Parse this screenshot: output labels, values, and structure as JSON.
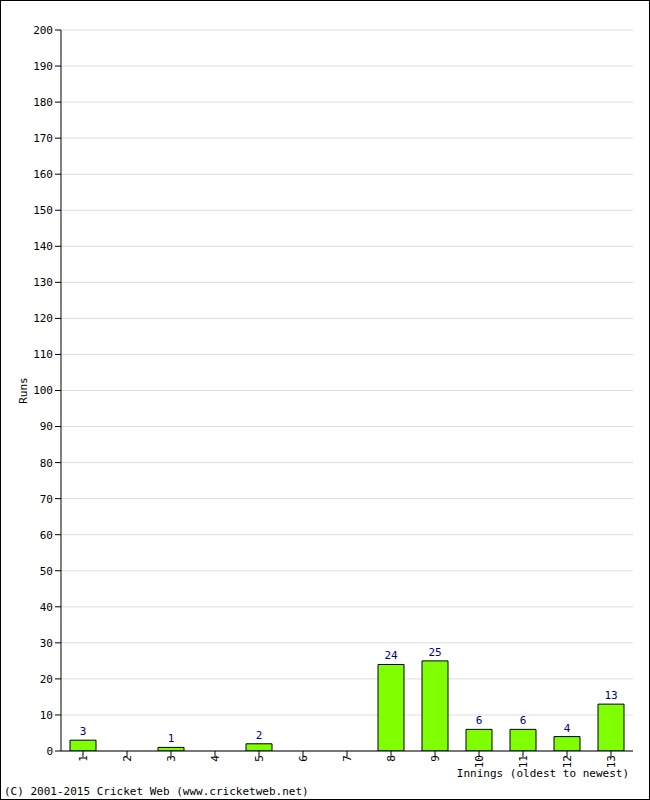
{
  "chart_data": {
    "type": "bar",
    "x_label": "Innings (oldest to newest)",
    "y_label": "Runs",
    "annotations": [
      "(C) 2001-2015 Cricket Web (www.cricketweb.net)"
    ],
    "categories": [
      "1",
      "2",
      "3",
      "4",
      "5",
      "6",
      "7",
      "8",
      "9",
      "10",
      "11",
      "12",
      "13"
    ],
    "values": [
      3,
      0,
      1,
      0,
      2,
      0,
      0,
      24,
      25,
      6,
      6,
      4,
      13
    ],
    "color": "#80ff00",
    "ylim": [
      0,
      200
    ],
    "yticks": [
      0,
      10,
      20,
      30,
      40,
      50,
      60,
      70,
      80,
      90,
      100,
      110,
      120,
      130,
      140,
      150,
      160,
      170,
      180,
      190,
      200
    ],
    "grid": true,
    "data_labels": true
  }
}
